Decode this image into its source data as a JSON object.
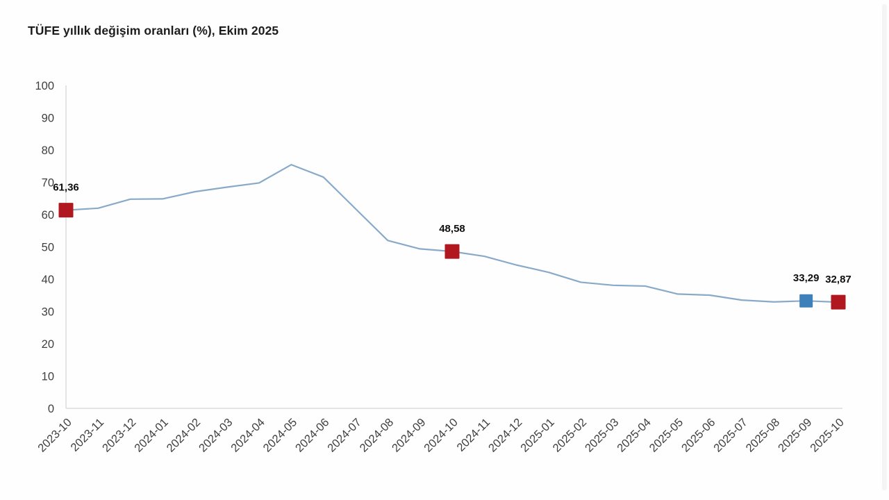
{
  "header": {
    "title": "TÜFE yıllık değişim oranları (%), Ekim 2025"
  },
  "chart_data": {
    "type": "line",
    "title": "TÜFE yıllık değişim oranları (%), Ekim 2025",
    "categories": [
      "2023-10",
      "2023-11",
      "2023-12",
      "2024-01",
      "2024-02",
      "2024-03",
      "2024-04",
      "2024-05",
      "2024-06",
      "2024-07",
      "2024-08",
      "2024-09",
      "2024-10",
      "2024-11",
      "2024-12",
      "2025-01",
      "2025-02",
      "2025-03",
      "2025-04",
      "2025-05",
      "2025-06",
      "2025-07",
      "2025-08",
      "2025-09",
      "2025-10"
    ],
    "series": [
      {
        "name": "TÜFE yıllık değişim oranı (%)",
        "values": [
          61.36,
          61.98,
          64.77,
          64.86,
          67.07,
          68.5,
          69.8,
          75.45,
          71.6,
          61.78,
          51.97,
          49.38,
          48.58,
          47.09,
          44.38,
          42.12,
          39.05,
          38.1,
          37.86,
          35.41,
          35.05,
          33.52,
          32.95,
          33.29,
          32.87
        ]
      }
    ],
    "xlabel": "",
    "ylabel": "",
    "ylim": [
      0,
      100
    ],
    "yticks": [
      0,
      10,
      20,
      30,
      40,
      50,
      60,
      70,
      80,
      90,
      100
    ],
    "grid": false,
    "legend_position": "none",
    "marked_points": [
      {
        "category": "2023-10",
        "value": 61.36,
        "label": "61,36",
        "color": "red"
      },
      {
        "category": "2024-10",
        "value": 48.58,
        "label": "48,58",
        "color": "red"
      },
      {
        "category": "2025-09",
        "value": 33.29,
        "label": "33,29",
        "color": "blue"
      },
      {
        "category": "2025-10",
        "value": 32.87,
        "label": "32,87",
        "color": "red"
      }
    ],
    "colors": {
      "line": "#88aac8",
      "marker_red": "#b1171e",
      "marker_blue": "#3e81ba",
      "axis": "#dcdcdc",
      "tick_label": "#3f3f3f",
      "data_label": "#0f0f0f"
    }
  }
}
